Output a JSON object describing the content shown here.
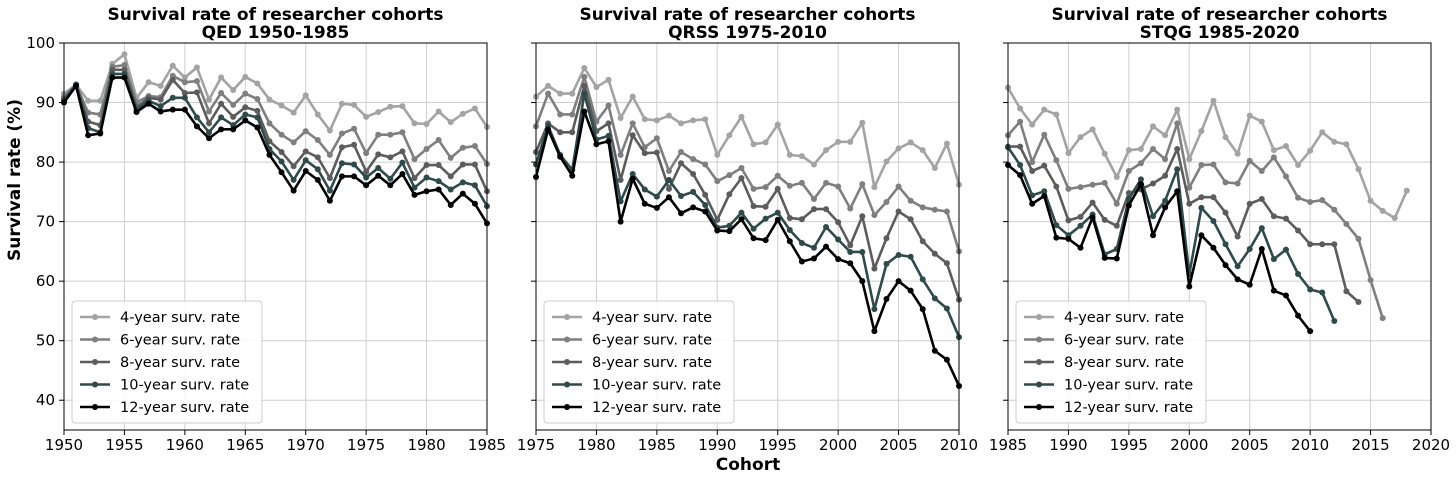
{
  "figure": {
    "shared_ylabel": "Survival rate (%)",
    "shared_xlabel": "Cohort"
  },
  "legend_labels": [
    "4-year surv. rate",
    "6-year surv. rate",
    "8-year surv. rate",
    "10-year surv. rate",
    "12-year surv. rate"
  ],
  "series_colors": [
    "#a3a3a3",
    "#7f7f7f",
    "#5c5c5c",
    "#2e4a4a",
    "#000000"
  ],
  "chart_data": [
    {
      "type": "line",
      "title": "Survival rate of researcher cohorts",
      "subtitle": "QED 1950-1985",
      "xlabel": "",
      "ylabel": "Survival rate (%)",
      "xlim": [
        1950,
        1985
      ],
      "ylim": [
        35,
        100
      ],
      "xticks": [
        1950,
        1955,
        1960,
        1965,
        1970,
        1975,
        1980,
        1985
      ],
      "yticks": [
        40,
        50,
        60,
        70,
        80,
        90,
        100
      ],
      "grid": true,
      "legend": "lower-left",
      "x": [
        1950,
        1951,
        1952,
        1953,
        1954,
        1955,
        1956,
        1957,
        1958,
        1959,
        1960,
        1961,
        1962,
        1963,
        1964,
        1965,
        1966,
        1967,
        1968,
        1969,
        1970,
        1971,
        1972,
        1973,
        1974,
        1975,
        1976,
        1977,
        1978,
        1979,
        1980,
        1981,
        1982,
        1983,
        1984,
        1985
      ],
      "series": [
        {
          "name": "4-year surv. rate",
          "values": [
            91.5,
            93,
            90.3,
            90.3,
            96.5,
            98.1,
            90.8,
            93.4,
            92.8,
            96.2,
            94.2,
            95.9,
            90.5,
            94.2,
            92.1,
            94.3,
            93.2,
            90.5,
            89.5,
            88.3,
            91.2,
            88,
            85.3,
            89.8,
            89.6,
            87.6,
            88.4,
            89.3,
            89.4,
            86.5,
            86.4,
            88.5,
            86.7,
            88.1,
            89,
            85.9
          ]
        },
        {
          "name": "6-year surv. rate",
          "values": [
            91,
            93,
            88.3,
            88,
            96,
            96.3,
            90,
            91.1,
            90.9,
            94.5,
            93.4,
            93.6,
            88.5,
            91.6,
            89.6,
            91.5,
            90.6,
            86.5,
            84.6,
            83.3,
            85.2,
            83.7,
            81.2,
            84.8,
            85.6,
            81.5,
            84.6,
            84.6,
            85,
            80.5,
            82.2,
            83.7,
            80.7,
            82.4,
            82.7,
            79.7
          ]
        },
        {
          "name": "8-year surv. rate",
          "values": [
            90.6,
            93,
            86.8,
            86.2,
            95.5,
            95.5,
            89.2,
            90.8,
            90.5,
            93.8,
            91.6,
            91.7,
            86.5,
            89.8,
            87.6,
            89.2,
            88.6,
            83.5,
            81.7,
            79.3,
            81.8,
            80.8,
            77.3,
            82.5,
            82.9,
            78.4,
            81.3,
            80.8,
            81.8,
            77.3,
            79.5,
            79.5,
            77.6,
            79.6,
            79.6,
            75.1
          ]
        },
        {
          "name": "10-year surv. rate",
          "values": [
            90.3,
            93,
            85.7,
            85,
            94.8,
            94.8,
            88.8,
            90.3,
            89.4,
            90.8,
            90.8,
            87.5,
            85,
            87.5,
            86.2,
            88,
            87.5,
            82.2,
            80.1,
            77,
            80.3,
            78.8,
            75.2,
            79.8,
            79.6,
            77.4,
            79,
            77.2,
            79.9,
            75.7,
            77.4,
            76.8,
            75.4,
            76.6,
            76.1,
            72.6
          ]
        },
        {
          "name": "12-year surv. rate",
          "values": [
            90,
            92.8,
            84.5,
            84.8,
            94.2,
            94.2,
            88.4,
            89.8,
            88.5,
            88.8,
            88.8,
            86,
            84,
            85.5,
            85.5,
            87,
            85.8,
            81.2,
            78.3,
            75.2,
            78.5,
            77,
            73.5,
            77.6,
            77.6,
            76.1,
            77.7,
            76.1,
            78,
            74.5,
            75.1,
            75.4,
            72.8,
            74.7,
            73,
            69.7
          ]
        }
      ]
    },
    {
      "type": "line",
      "title": "Survival rate of researcher cohorts",
      "subtitle": "QRSS 1975-2010",
      "xlabel": "Cohort",
      "ylabel": "",
      "xlim": [
        1975,
        2010
      ],
      "ylim": [
        35,
        100
      ],
      "xticks": [
        1975,
        1980,
        1985,
        1990,
        1995,
        2000,
        2005,
        2010
      ],
      "yticks": [
        40,
        50,
        60,
        70,
        80,
        90,
        100
      ],
      "grid": true,
      "legend": "lower-left",
      "x": [
        1975,
        1976,
        1977,
        1978,
        1979,
        1980,
        1981,
        1982,
        1983,
        1984,
        1985,
        1986,
        1987,
        1988,
        1989,
        1990,
        1991,
        1992,
        1993,
        1994,
        1995,
        1996,
        1997,
        1998,
        1999,
        2000,
        2001,
        2002,
        2003,
        2004,
        2005,
        2006,
        2007,
        2008,
        2009,
        2010
      ],
      "series": [
        {
          "name": "4-year surv. rate",
          "values": [
            91,
            92.8,
            91.5,
            91.5,
            95.8,
            92.6,
            93.8,
            87.4,
            91,
            87.2,
            87,
            87.8,
            86.5,
            87,
            87.2,
            81.2,
            84.5,
            87.6,
            83,
            83.3,
            86.3,
            81.2,
            81,
            79.6,
            82,
            83.4,
            83.4,
            86.6,
            75.8,
            80.1,
            82.3,
            83.3,
            82,
            79,
            83.1,
            76.2
          ]
        },
        {
          "name": "6-year surv. rate",
          "values": [
            86,
            91.5,
            88,
            88,
            94.3,
            86.8,
            89.5,
            81.2,
            86.5,
            82.5,
            84,
            78.5,
            81.7,
            80.5,
            79.6,
            76.8,
            77.8,
            79,
            75.5,
            75.8,
            77.7,
            76,
            76.5,
            73.8,
            76.5,
            75.9,
            72.2,
            76.3,
            71.1,
            73.3,
            75.9,
            73.5,
            72.4,
            72,
            71.7,
            65
          ]
        },
        {
          "name": "8-year surv. rate",
          "values": [
            81.7,
            86.5,
            85,
            85,
            92.8,
            85.2,
            86.5,
            77,
            84.5,
            81.5,
            81.6,
            75.5,
            79.8,
            78,
            74.5,
            70.3,
            74.6,
            77.3,
            72.6,
            72.5,
            75.5,
            70.6,
            70.4,
            72.1,
            72.1,
            69.9,
            66,
            70.9,
            62.1,
            67.2,
            71.7,
            70.4,
            66.7,
            64.6,
            63,
            56.9
          ]
        },
        {
          "name": "10-year surv. rate",
          "values": [
            79.6,
            86.1,
            81.2,
            78.7,
            91.5,
            83.8,
            84.4,
            73.4,
            78,
            75.4,
            74.2,
            77,
            74.3,
            75,
            72.8,
            69,
            69.3,
            71.5,
            68.8,
            70.5,
            71.5,
            68.6,
            66.4,
            65.6,
            69.1,
            67,
            64.9,
            64.9,
            55.3,
            62.9,
            64.4,
            64.1,
            60.3,
            57.1,
            55.4,
            50.6
          ]
        },
        {
          "name": "12-year surv. rate",
          "values": [
            77.5,
            85.5,
            80.9,
            77.7,
            88.5,
            83,
            83.5,
            70,
            77.2,
            73,
            72.3,
            74.1,
            71.4,
            72.4,
            71.7,
            68.5,
            68.4,
            70.4,
            67.2,
            66.9,
            70.3,
            66.7,
            63.3,
            63.8,
            65.8,
            63.7,
            63,
            60,
            51.6,
            57,
            60,
            58.4,
            55.3,
            48.3,
            46.8,
            42.4
          ]
        }
      ]
    },
    {
      "type": "line",
      "title": "Survival rate of researcher cohorts",
      "subtitle": "STQG 1985-2020",
      "xlabel": "",
      "ylabel": "",
      "xlim": [
        1985,
        2020
      ],
      "ylim": [
        35,
        100
      ],
      "xticks": [
        1985,
        1990,
        1995,
        2000,
        2005,
        2010,
        2015,
        2020
      ],
      "yticks": [
        40,
        50,
        60,
        70,
        80,
        90,
        100
      ],
      "grid": true,
      "legend": "lower-left",
      "series": [
        {
          "name": "4-year surv. rate",
          "x": [
            1985,
            1986,
            1987,
            1988,
            1989,
            1990,
            1991,
            1992,
            1993,
            1994,
            1995,
            1996,
            1997,
            1998,
            1999,
            2000,
            2001,
            2002,
            2003,
            2004,
            2005,
            2006,
            2007,
            2008,
            2009,
            2010,
            2011,
            2012,
            2013,
            2014,
            2015,
            2016,
            2017,
            2018
          ],
          "values": [
            92.5,
            89,
            86.3,
            88.8,
            88,
            81.5,
            84.2,
            85.5,
            81.4,
            77.5,
            82,
            82.2,
            86,
            84.5,
            88.8,
            80.5,
            85.2,
            90.3,
            84.2,
            81.4,
            87.8,
            86.8,
            82,
            82.7,
            79.5,
            81.9,
            85,
            83.4,
            83,
            78.8,
            73.5,
            71.8,
            70.6,
            75.2
          ]
        },
        {
          "name": "6-year surv. rate",
          "x": [
            1985,
            1986,
            1987,
            1988,
            1989,
            1990,
            1991,
            1992,
            1993,
            1994,
            1995,
            1996,
            1997,
            1998,
            1999,
            2000,
            2001,
            2002,
            2003,
            2004,
            2005,
            2006,
            2007,
            2008,
            2009,
            2010,
            2011,
            2012,
            2013,
            2014,
            2015,
            2016
          ],
          "values": [
            84.5,
            86.8,
            80,
            84.6,
            80.3,
            75.5,
            75.8,
            76.2,
            76.5,
            73,
            78.5,
            79.8,
            82.2,
            80.5,
            86.5,
            75.7,
            79.5,
            79.6,
            76.6,
            76.4,
            80.2,
            78.5,
            80.8,
            77.6,
            74,
            73.3,
            73.6,
            72,
            69.6,
            67.1,
            60.2,
            53.8
          ]
        },
        {
          "name": "8-year surv. rate",
          "x": [
            1985,
            1986,
            1987,
            1988,
            1989,
            1990,
            1991,
            1992,
            1993,
            1994,
            1995,
            1996,
            1997,
            1998,
            1999,
            2000,
            2001,
            2002,
            2003,
            2004,
            2005,
            2006,
            2007,
            2008,
            2009,
            2010,
            2011,
            2012,
            2013,
            2014
          ],
          "values": [
            82.6,
            82.6,
            78.5,
            79.4,
            75.9,
            70.2,
            70.8,
            73.2,
            70.3,
            69.3,
            74.8,
            75.4,
            76.4,
            77.7,
            82.2,
            73,
            74.1,
            74.1,
            71.5,
            67.5,
            73,
            73.8,
            70.9,
            70.5,
            68.5,
            66.2,
            66.2,
            66.2,
            58.3,
            56.5
          ]
        },
        {
          "name": "10-year surv. rate",
          "x": [
            1985,
            1986,
            1987,
            1988,
            1989,
            1990,
            1991,
            1992,
            1993,
            1994,
            1995,
            1996,
            1997,
            1998,
            1999,
            2000,
            2001,
            2002,
            2003,
            2004,
            2005,
            2006,
            2007,
            2008,
            2009,
            2010,
            2011,
            2012
          ],
          "values": [
            82.5,
            79.5,
            74.4,
            75.1,
            69.4,
            67.7,
            69.3,
            71.2,
            64.5,
            65.4,
            73.8,
            77.1,
            70.9,
            73.5,
            78.8,
            61.2,
            72.3,
            70.1,
            66.2,
            62.5,
            65.4,
            68.9,
            63.7,
            65.3,
            61.2,
            58.6,
            58.1,
            53.3
          ]
        },
        {
          "name": "12-year surv. rate",
          "x": [
            1985,
            1986,
            1987,
            1988,
            1989,
            1990,
            1991,
            1992,
            1993,
            1994,
            1995,
            1996,
            1997,
            1998,
            1999,
            2000,
            2001,
            2002,
            2003,
            2004,
            2005,
            2006,
            2007,
            2008,
            2009,
            2010
          ],
          "values": [
            79.5,
            77.8,
            73,
            74.3,
            67.3,
            67.1,
            65.6,
            70.7,
            63.9,
            63.8,
            72.7,
            76.3,
            67.7,
            72.4,
            75.1,
            59.1,
            67.7,
            65.6,
            62.7,
            60.3,
            59.4,
            65.4,
            58.4,
            57.6,
            54.2,
            51.6
          ]
        }
      ]
    }
  ]
}
